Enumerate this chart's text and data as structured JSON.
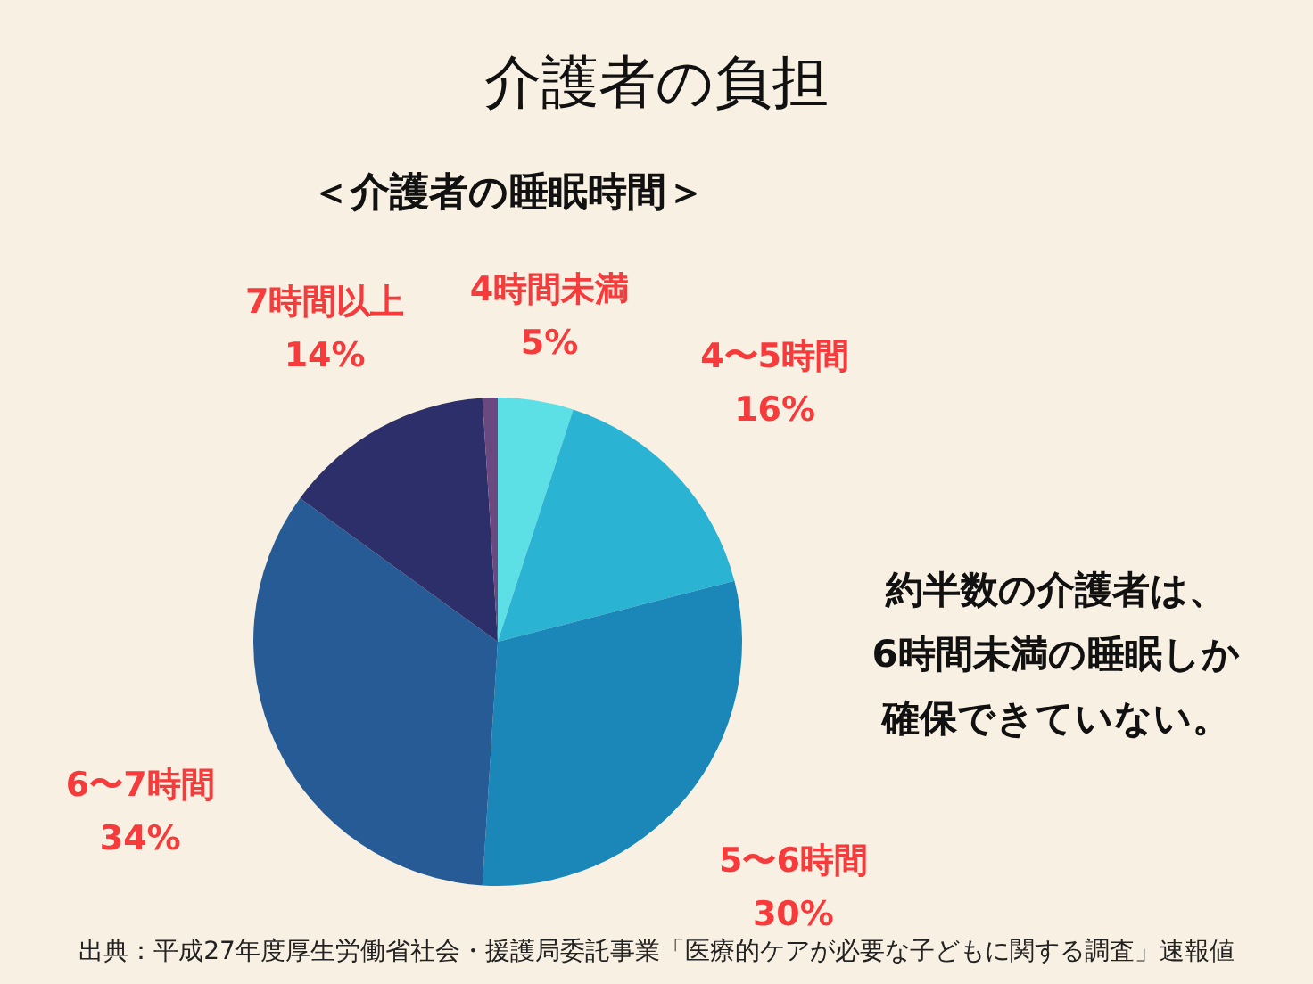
{
  "chart_data": {
    "type": "pie",
    "title": "介護者の負担",
    "subtitle": "＜介護者の睡眠時間＞",
    "categories": [
      "4時間未満",
      "4〜5時間",
      "5〜6時間",
      "6〜7時間",
      "7時間以上",
      null
    ],
    "values": [
      5,
      16,
      30,
      34,
      14,
      1
    ],
    "colors": [
      "#5ce0e6",
      "#2bb3d4",
      "#1a87b8",
      "#265b96",
      "#2d2f6b",
      "#6b4880"
    ],
    "value_labels": [
      "5%",
      "16%",
      "30%",
      "34%",
      "14%",
      null
    ],
    "annotations": [
      "約半数の介護者は、",
      "6時間未満の睡眠しか",
      "確保できていない。",
      "出典：平成27年度厚生労働省社会・援護局委託事業「医療的ケアが必要な子どもに関する調査」速報値"
    ]
  }
}
